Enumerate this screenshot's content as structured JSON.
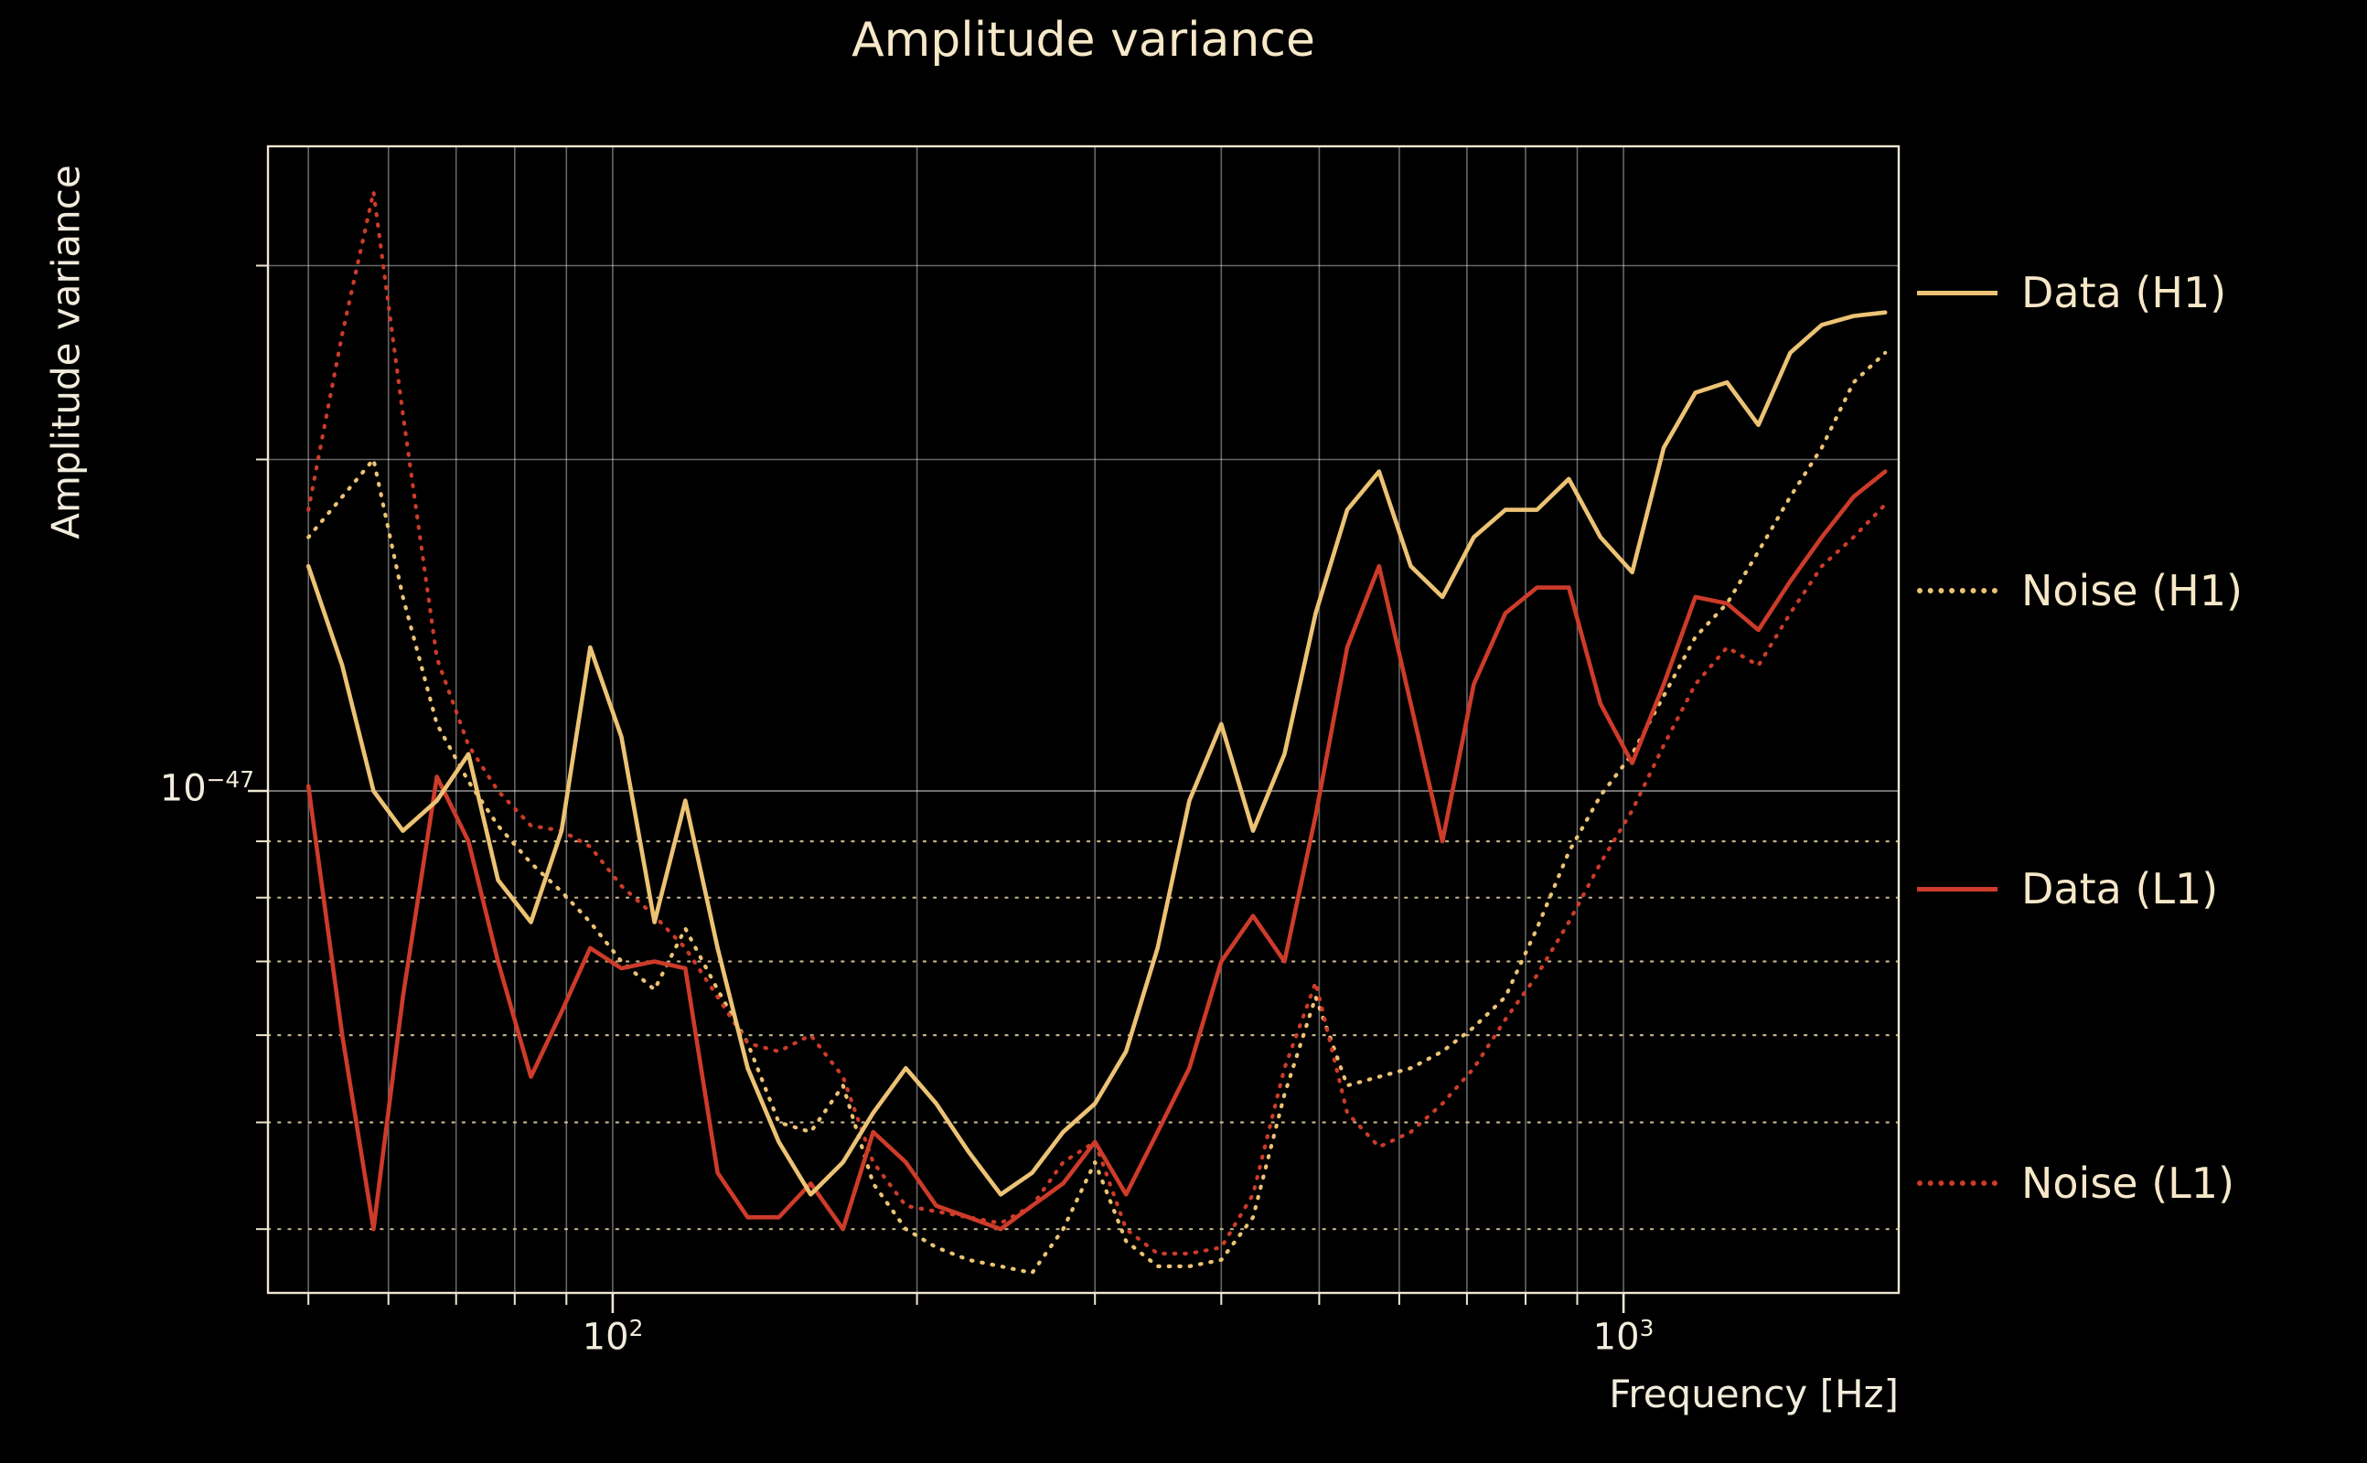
{
  "title": "Amplitude variance",
  "axes": {
    "x_label": "Frequency [Hz]",
    "y_label": "Amplitude variance",
    "x_ticks": [
      {
        "base": "10",
        "exp": "2"
      },
      {
        "base": "10",
        "exp": "3"
      }
    ],
    "y_ticks": [
      {
        "base": "10",
        "exp": "−47"
      }
    ]
  },
  "legend": [
    {
      "label": "Data (H1)",
      "color": "#ecc374",
      "style": "solid"
    },
    {
      "label": "Noise (H1)",
      "color": "#ecc374",
      "style": "dotted"
    },
    {
      "label": "Data (L1)",
      "color": "#cd3b2a",
      "style": "solid"
    },
    {
      "label": "Noise (L1)",
      "color": "#cd3b2a",
      "style": "dotted"
    }
  ],
  "colors": {
    "background": "#000000",
    "gold": "#ecc374",
    "red": "#cd3b2a",
    "text_cream": "#f6e8c8",
    "text_tick": "#f2ecdc",
    "frame": "#efe7d2",
    "grid_solid": "#ffffff",
    "grid_dotted": "#e3cf9f"
  },
  "chart_data": {
    "type": "line",
    "title": "Amplitude variance",
    "xlabel": "Frequency [Hz]",
    "ylabel": "Amplitude variance",
    "xscale": "log",
    "yscale": "log",
    "unit": "1e-48",
    "xlim": [
      45.6,
      1872
    ],
    "ylim": [
      3.5,
      38.5
    ],
    "x_gridlines": [
      50,
      60,
      70,
      80,
      90,
      100,
      200,
      300,
      400,
      500,
      600,
      700,
      800,
      900,
      1000
    ],
    "y_gridlines_minor": [
      4,
      5,
      6,
      7,
      8,
      9,
      20,
      30
    ],
    "y_gridlines_major": [
      10
    ],
    "x": [
      50,
      54,
      58,
      62,
      67,
      72,
      77,
      83,
      89,
      95,
      102,
      110,
      118,
      127,
      136,
      146,
      157,
      169,
      181,
      195,
      209,
      225,
      242,
      260,
      279,
      300,
      322,
      346,
      372,
      400,
      430,
      462,
      496,
      533,
      573,
      616,
      662,
      711,
      764,
      821,
      883,
      949,
      1020,
      1096,
      1178,
      1266,
      1360,
      1462,
      1571,
      1689,
      1815
    ],
    "series": [
      {
        "name": "Data (H1)",
        "color": "#ecc374",
        "style": "solid",
        "values": [
          16,
          13,
          10,
          9.2,
          9.8,
          10.8,
          8.3,
          7.6,
          9.2,
          13.5,
          11.2,
          7.6,
          9.8,
          7.2,
          5.6,
          4.8,
          4.3,
          4.6,
          5.1,
          5.6,
          5.2,
          4.7,
          4.3,
          4.5,
          4.9,
          5.2,
          5.8,
          7.2,
          9.8,
          11.5,
          9.2,
          10.8,
          14.5,
          18,
          19.5,
          16,
          15,
          17,
          18,
          18,
          19.2,
          17,
          15.8,
          20.5,
          23,
          23.5,
          21.5,
          25,
          26.5,
          27,
          27.2
        ]
      },
      {
        "name": "Noise (H1)",
        "color": "#ecc374",
        "style": "dotted",
        "values": [
          17,
          18.5,
          20,
          15,
          11.5,
          10.2,
          9.3,
          8.6,
          8.1,
          7.6,
          7,
          6.6,
          7.5,
          6.6,
          5.9,
          5,
          4.9,
          5.4,
          4.4,
          4,
          3.85,
          3.75,
          3.7,
          3.65,
          4,
          4.6,
          3.9,
          3.7,
          3.7,
          3.75,
          4.1,
          5.3,
          6.5,
          5.4,
          5.5,
          5.6,
          5.8,
          6.1,
          6.5,
          7.5,
          8.8,
          9.9,
          10.8,
          12.2,
          13.8,
          14.8,
          16.5,
          18.5,
          20.5,
          23.5,
          25
        ]
      },
      {
        "name": "Data (L1)",
        "color": "#cd3b2a",
        "style": "solid",
        "values": [
          10.1,
          6,
          4,
          6.5,
          10.3,
          9,
          7,
          5.5,
          6.3,
          7.2,
          6.9,
          7,
          6.9,
          4.5,
          4.1,
          4.1,
          4.4,
          4,
          4.9,
          4.6,
          4.2,
          4.1,
          4,
          4.2,
          4.4,
          4.8,
          4.3,
          4.9,
          5.6,
          7,
          7.7,
          7,
          9.5,
          13.5,
          16,
          12,
          9,
          12.5,
          14.5,
          15.3,
          15.3,
          12,
          10.6,
          12.5,
          15,
          14.8,
          14,
          15.5,
          17,
          18.5,
          19.5
        ]
      },
      {
        "name": "Noise (L1)",
        "color": "#cd3b2a",
        "style": "dotted",
        "values": [
          18,
          26,
          35,
          22,
          13.2,
          11,
          10,
          9.3,
          9.2,
          8.9,
          8.2,
          7.7,
          7.2,
          6.5,
          5.9,
          5.8,
          6,
          5.5,
          4.6,
          4.2,
          4.15,
          4.1,
          4.05,
          4.2,
          4.6,
          4.8,
          4,
          3.8,
          3.8,
          3.85,
          4.3,
          5.6,
          6.7,
          5.1,
          4.75,
          4.9,
          5.2,
          5.6,
          6.2,
          6.8,
          7.6,
          8.6,
          9.6,
          11,
          12.5,
          13.5,
          13,
          14.5,
          16,
          17,
          18.2
        ]
      }
    ]
  }
}
